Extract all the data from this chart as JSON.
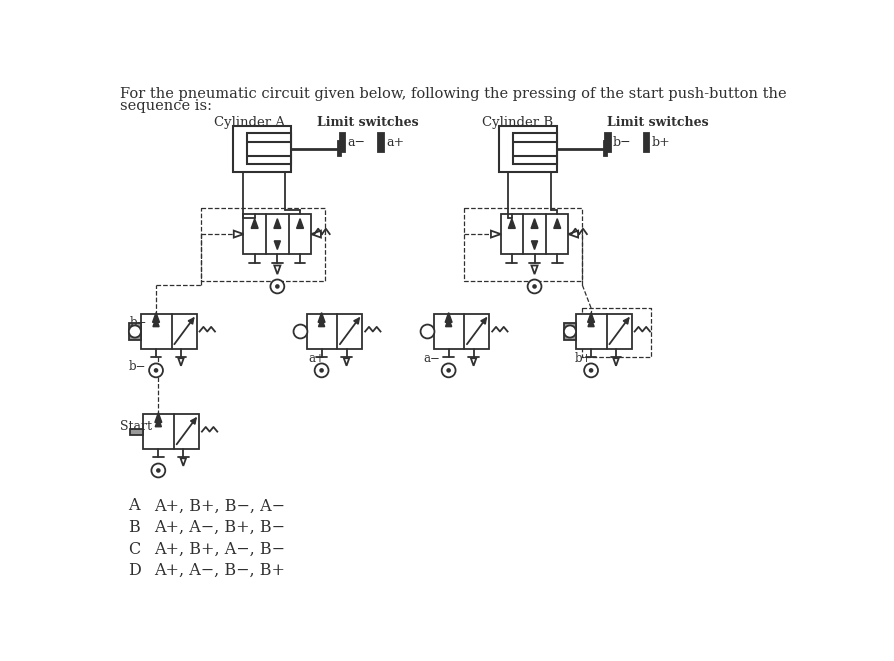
{
  "title_line1": "For the pneumatic circuit given below, following the pressing of the start push-button the",
  "title_line2": "sequence is:",
  "options": [
    [
      "A",
      "A+, B+, B−, A−"
    ],
    [
      "B",
      "A+, A−, B+, B−"
    ],
    [
      "C",
      "A+, B+, A−, B−"
    ],
    [
      "D",
      "A+, A−, B−, B+"
    ]
  ],
  "bg_color": "#ffffff",
  "text_color": "#303030",
  "line_color": "#303030",
  "gray_color": "#999999",
  "font_size_title": 10.5,
  "font_size_options": 11,
  "font_size_label": 8.5
}
